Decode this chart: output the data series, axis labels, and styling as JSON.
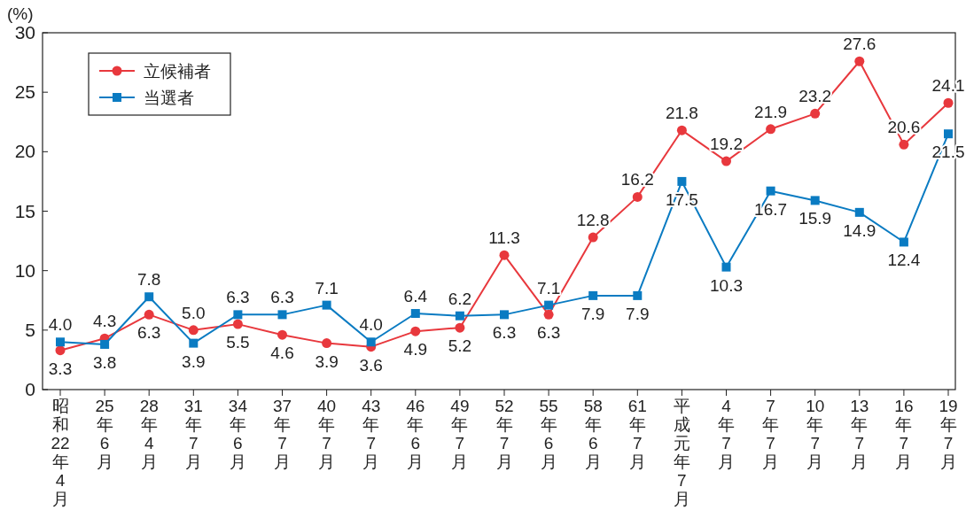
{
  "chart_data": {
    "type": "line",
    "ylabel": "(%)",
    "categories": [
      "昭和22年4月",
      "25年6月",
      "28年4月",
      "31年7月",
      "34年6月",
      "37年7月",
      "40年7月",
      "43年7月",
      "46年6月",
      "49年7月",
      "52年7月",
      "55年6月",
      "58年6月",
      "61年7月",
      "平成元年7月",
      "4年7月",
      "7年7月",
      "10年7月",
      "13年7月",
      "16年7月",
      "19年7月"
    ],
    "series": [
      {
        "name": "立候補者",
        "color": "#e8383d",
        "marker": "circle",
        "values": [
          3.3,
          4.3,
          6.3,
          5.0,
          5.5,
          4.6,
          3.9,
          3.6,
          4.9,
          5.2,
          11.3,
          6.3,
          12.8,
          16.2,
          21.8,
          19.2,
          21.9,
          23.2,
          27.6,
          20.6,
          24.1
        ],
        "value_labels": [
          "3.3",
          "4.3",
          "6.3",
          "5.0",
          "5.5",
          "4.6",
          "3.9",
          "3.6",
          "4.9",
          "5.2",
          "11.3",
          "6.3",
          "12.8",
          "16.2",
          "21.8",
          "19.2",
          "21.9",
          "23.2",
          "27.6",
          "20.6",
          "24.1"
        ]
      },
      {
        "name": "当選者",
        "color": "#0a7bc2",
        "marker": "square",
        "values": [
          4.0,
          3.8,
          7.8,
          3.9,
          6.3,
          6.3,
          7.1,
          4.0,
          6.4,
          6.2,
          6.3,
          7.1,
          7.9,
          7.9,
          17.5,
          10.3,
          16.7,
          15.9,
          14.9,
          12.4,
          21.5
        ],
        "value_labels": [
          "4.0",
          "3.8",
          "7.8",
          "3.9",
          "6.3",
          "6.3",
          "7.1",
          "4.0",
          "6.4",
          "6.2",
          "6.3",
          "7.1",
          "7.9",
          "7.9",
          "17.5",
          "10.3",
          "16.7",
          "15.9",
          "14.9",
          "12.4",
          "21.5"
        ]
      }
    ],
    "ylim": [
      0,
      30
    ],
    "yticks": [
      0,
      5,
      10,
      15,
      20,
      25,
      30
    ],
    "grid": false,
    "legend": "top left"
  }
}
